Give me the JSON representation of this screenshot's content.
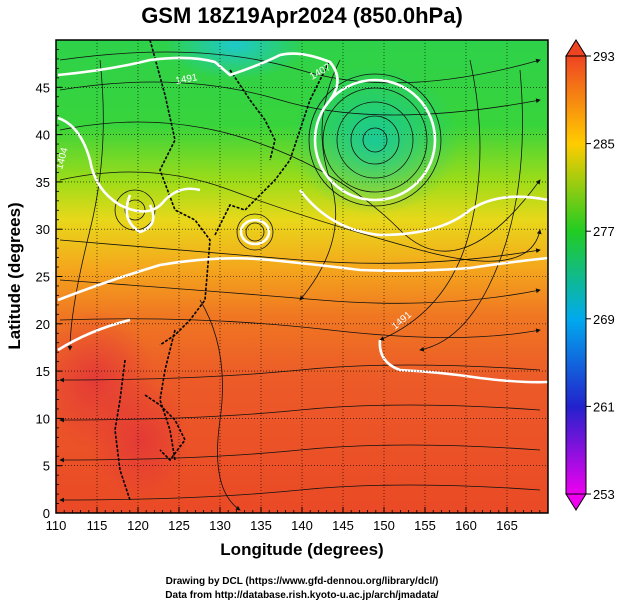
{
  "title": "GSM 18Z19Apr2024 (850.0hPa)",
  "x_axis": {
    "label": "Longitude (degrees)",
    "ticks": [
      "110",
      "115",
      "120",
      "125",
      "130",
      "135",
      "140",
      "145",
      "150",
      "155",
      "160",
      "165"
    ]
  },
  "y_axis": {
    "label": "Latitude  (degrees)",
    "ticks": [
      "0",
      "5",
      "10",
      "15",
      "20",
      "25",
      "30",
      "35",
      "40",
      "45"
    ]
  },
  "colorbar": {
    "ticks": [
      "253",
      "261",
      "269",
      "277",
      "285",
      "293"
    ],
    "colors": [
      "#ee00ee",
      "#2222cc",
      "#00aaee",
      "#22cc22",
      "#ffcc00",
      "#ee4422"
    ]
  },
  "contour_labels": [
    "1491",
    "1404",
    "1407",
    "1491"
  ],
  "credits": {
    "line1": "Drawing by DCL (https://www.gfd-dennou.org/library/dcl/)",
    "line2": "Data from http://database.rish.kyoto-u.ac.jp/arch/jmadata/"
  },
  "map_data": {
    "type": "weather-map",
    "lon_range": [
      110,
      170
    ],
    "lat_range": [
      0,
      50
    ],
    "field": "temperature",
    "value_range": [
      253,
      293
    ],
    "low_center": {
      "lon": 149,
      "lat": 40.5
    },
    "grid": true
  }
}
